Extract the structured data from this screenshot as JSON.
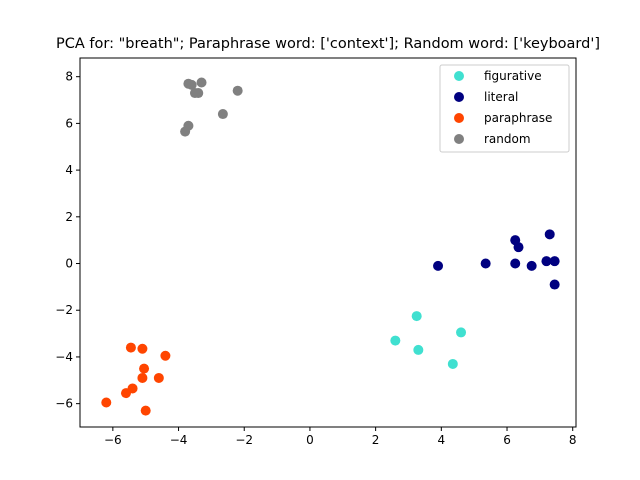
{
  "chart_data": {
    "type": "scatter",
    "title": "PCA for: \"breath\"; Paraphrase word: ['context']; Random word: ['keyboard']",
    "xlabel": "",
    "ylabel": "",
    "xlim": [
      -7.0,
      8.1
    ],
    "ylim": [
      -7.0,
      8.8
    ],
    "xticks": [
      -6,
      -4,
      -2,
      0,
      2,
      4,
      6,
      8
    ],
    "yticks": [
      -6,
      -4,
      -2,
      0,
      2,
      4,
      6,
      8
    ],
    "grid": false,
    "legend_position": "top-right",
    "series": [
      {
        "name": "figurative",
        "color": "#40e0d0",
        "points": [
          [
            3.25,
            -2.25
          ],
          [
            4.6,
            -2.95
          ],
          [
            2.6,
            -3.3
          ],
          [
            3.3,
            -3.7
          ],
          [
            4.35,
            -4.3
          ]
        ]
      },
      {
        "name": "literal",
        "color": "#000080",
        "points": [
          [
            6.25,
            1.0
          ],
          [
            7.3,
            1.25
          ],
          [
            6.35,
            0.7
          ],
          [
            7.2,
            0.1
          ],
          [
            7.45,
            0.1
          ],
          [
            5.35,
            0.0
          ],
          [
            6.25,
            0.0
          ],
          [
            6.75,
            -0.1
          ],
          [
            3.9,
            -0.1
          ],
          [
            7.45,
            -0.9
          ]
        ]
      },
      {
        "name": "paraphrase",
        "color": "#ff4500",
        "points": [
          [
            -5.45,
            -3.6
          ],
          [
            -5.1,
            -3.65
          ],
          [
            -4.4,
            -3.95
          ],
          [
            -5.05,
            -4.5
          ],
          [
            -5.1,
            -4.9
          ],
          [
            -4.6,
            -4.9
          ],
          [
            -5.4,
            -5.35
          ],
          [
            -5.6,
            -5.55
          ],
          [
            -6.2,
            -5.95
          ],
          [
            -5.0,
            -6.3
          ]
        ]
      },
      {
        "name": "random",
        "color": "#808080",
        "points": [
          [
            -3.7,
            7.7
          ],
          [
            -3.6,
            7.65
          ],
          [
            -3.3,
            7.75
          ],
          [
            -2.2,
            7.4
          ],
          [
            -3.5,
            7.3
          ],
          [
            -3.4,
            7.3
          ],
          [
            -2.65,
            6.4
          ],
          [
            -3.7,
            5.9
          ],
          [
            -3.8,
            5.65
          ]
        ]
      }
    ]
  }
}
